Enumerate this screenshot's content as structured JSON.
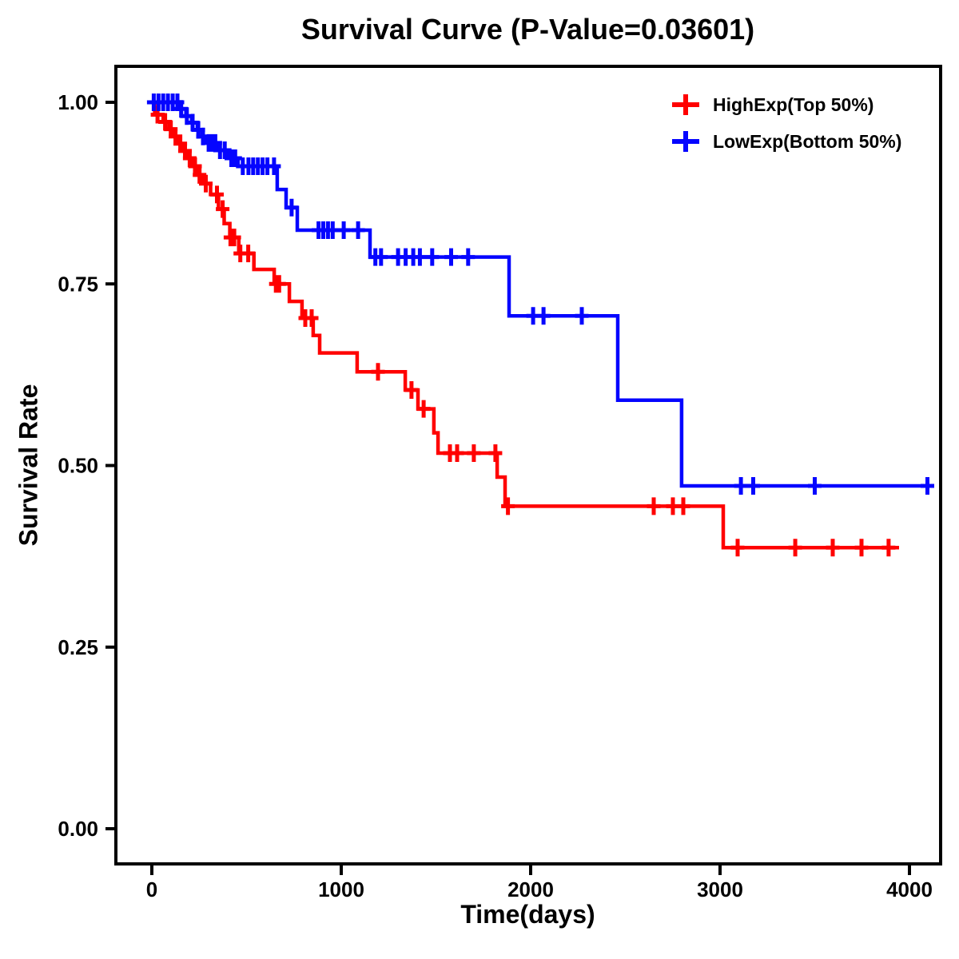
{
  "chart_data": {
    "type": "line",
    "subtype": "kaplan-meier-step-curve",
    "title": "Survival Curve (P-Value=0.03601)",
    "p_value": "0.03601",
    "xlabel": "Time(days)",
    "ylabel": "Survival Rate",
    "xlim": [
      -200,
      4170
    ],
    "ylim": [
      -0.05,
      1.05
    ],
    "grid": false,
    "legend_position": "top-right",
    "background_color": "#ffffff",
    "axis_color": "#000000",
    "x_ticks": [
      {
        "value": 0,
        "label": "0"
      },
      {
        "value": 1000,
        "label": "1000"
      },
      {
        "value": 2000,
        "label": "2000"
      },
      {
        "value": 3000,
        "label": "3000"
      },
      {
        "value": 4000,
        "label": "4000"
      }
    ],
    "y_ticks": [
      {
        "value": 0.0,
        "label": "0.00"
      },
      {
        "value": 0.25,
        "label": "0.25"
      },
      {
        "value": 0.5,
        "label": "0.50"
      },
      {
        "value": 0.75,
        "label": "0.75"
      },
      {
        "value": 1.0,
        "label": "1.00"
      }
    ],
    "series": [
      {
        "name": "HighExp(Top 50%)",
        "color": "#FF0000",
        "end_time": 3945,
        "steps": [
          [
            0,
            1.0
          ],
          [
            15,
            0.983
          ],
          [
            60,
            0.973
          ],
          [
            90,
            0.963
          ],
          [
            115,
            0.953
          ],
          [
            140,
            0.943
          ],
          [
            165,
            0.933
          ],
          [
            190,
            0.923
          ],
          [
            215,
            0.912
          ],
          [
            240,
            0.9
          ],
          [
            265,
            0.888
          ],
          [
            310,
            0.873
          ],
          [
            352,
            0.853
          ],
          [
            382,
            0.833
          ],
          [
            412,
            0.814
          ],
          [
            459,
            0.792
          ],
          [
            539,
            0.77
          ],
          [
            646,
            0.75
          ],
          [
            726,
            0.726
          ],
          [
            793,
            0.703
          ],
          [
            852,
            0.679
          ],
          [
            886,
            0.655
          ],
          [
            1084,
            0.629
          ],
          [
            1338,
            0.604
          ],
          [
            1405,
            0.578
          ],
          [
            1489,
            0.545
          ],
          [
            1511,
            0.517
          ],
          [
            1823,
            0.484
          ],
          [
            1865,
            0.444
          ],
          [
            3017,
            0.387
          ]
        ],
        "censors": [
          [
            30,
            0.983
          ],
          [
            70,
            0.973
          ],
          [
            100,
            0.963
          ],
          [
            125,
            0.953
          ],
          [
            150,
            0.943
          ],
          [
            175,
            0.933
          ],
          [
            200,
            0.923
          ],
          [
            228,
            0.912
          ],
          [
            252,
            0.9
          ],
          [
            285,
            0.888
          ],
          [
            344,
            0.873
          ],
          [
            374,
            0.853
          ],
          [
            415,
            0.814
          ],
          [
            435,
            0.814
          ],
          [
            467,
            0.792
          ],
          [
            509,
            0.792
          ],
          [
            655,
            0.75
          ],
          [
            672,
            0.75
          ],
          [
            810,
            0.703
          ],
          [
            844,
            0.703
          ],
          [
            1194,
            0.629
          ],
          [
            1371,
            0.604
          ],
          [
            1435,
            0.578
          ],
          [
            1574,
            0.517
          ],
          [
            1612,
            0.517
          ],
          [
            1700,
            0.517
          ],
          [
            1814,
            0.517
          ],
          [
            1880,
            0.444
          ],
          [
            2650,
            0.444
          ],
          [
            2751,
            0.444
          ],
          [
            2806,
            0.444
          ],
          [
            3093,
            0.387
          ],
          [
            3397,
            0.387
          ],
          [
            3595,
            0.387
          ],
          [
            3747,
            0.387
          ],
          [
            3890,
            0.387
          ]
        ]
      },
      {
        "name": "LowExp(Bottom 50%)",
        "color": "#0505FF",
        "end_time": 4120,
        "steps": [
          [
            0,
            1.0
          ],
          [
            150,
            0.991
          ],
          [
            180,
            0.981
          ],
          [
            210,
            0.972
          ],
          [
            240,
            0.962
          ],
          [
            265,
            0.953
          ],
          [
            290,
            0.944
          ],
          [
            345,
            0.934
          ],
          [
            400,
            0.923
          ],
          [
            455,
            0.912
          ],
          [
            662,
            0.88
          ],
          [
            709,
            0.855
          ],
          [
            768,
            0.824
          ],
          [
            1152,
            0.787
          ],
          [
            1886,
            0.706
          ],
          [
            2460,
            0.59
          ],
          [
            2797,
            0.472
          ]
        ],
        "censors": [
          [
            10,
            1.0
          ],
          [
            35,
            1.0
          ],
          [
            60,
            1.0
          ],
          [
            85,
            1.0
          ],
          [
            110,
            1.0
          ],
          [
            135,
            1.0
          ],
          [
            155,
            0.991
          ],
          [
            185,
            0.981
          ],
          [
            215,
            0.972
          ],
          [
            245,
            0.962
          ],
          [
            270,
            0.953
          ],
          [
            300,
            0.944
          ],
          [
            320,
            0.944
          ],
          [
            335,
            0.944
          ],
          [
            360,
            0.934
          ],
          [
            385,
            0.934
          ],
          [
            420,
            0.923
          ],
          [
            440,
            0.923
          ],
          [
            480,
            0.912
          ],
          [
            510,
            0.912
          ],
          [
            535,
            0.912
          ],
          [
            560,
            0.912
          ],
          [
            585,
            0.912
          ],
          [
            610,
            0.912
          ],
          [
            645,
            0.912
          ],
          [
            738,
            0.855
          ],
          [
            880,
            0.824
          ],
          [
            905,
            0.824
          ],
          [
            930,
            0.824
          ],
          [
            955,
            0.824
          ],
          [
            1013,
            0.824
          ],
          [
            1089,
            0.824
          ],
          [
            1180,
            0.787
          ],
          [
            1210,
            0.787
          ],
          [
            1300,
            0.787
          ],
          [
            1340,
            0.787
          ],
          [
            1380,
            0.787
          ],
          [
            1415,
            0.787
          ],
          [
            1480,
            0.787
          ],
          [
            1580,
            0.787
          ],
          [
            1670,
            0.787
          ],
          [
            2013,
            0.706
          ],
          [
            2068,
            0.706
          ],
          [
            2270,
            0.706
          ],
          [
            3110,
            0.472
          ],
          [
            3175,
            0.472
          ],
          [
            3500,
            0.472
          ],
          [
            4095,
            0.472
          ]
        ]
      }
    ]
  }
}
